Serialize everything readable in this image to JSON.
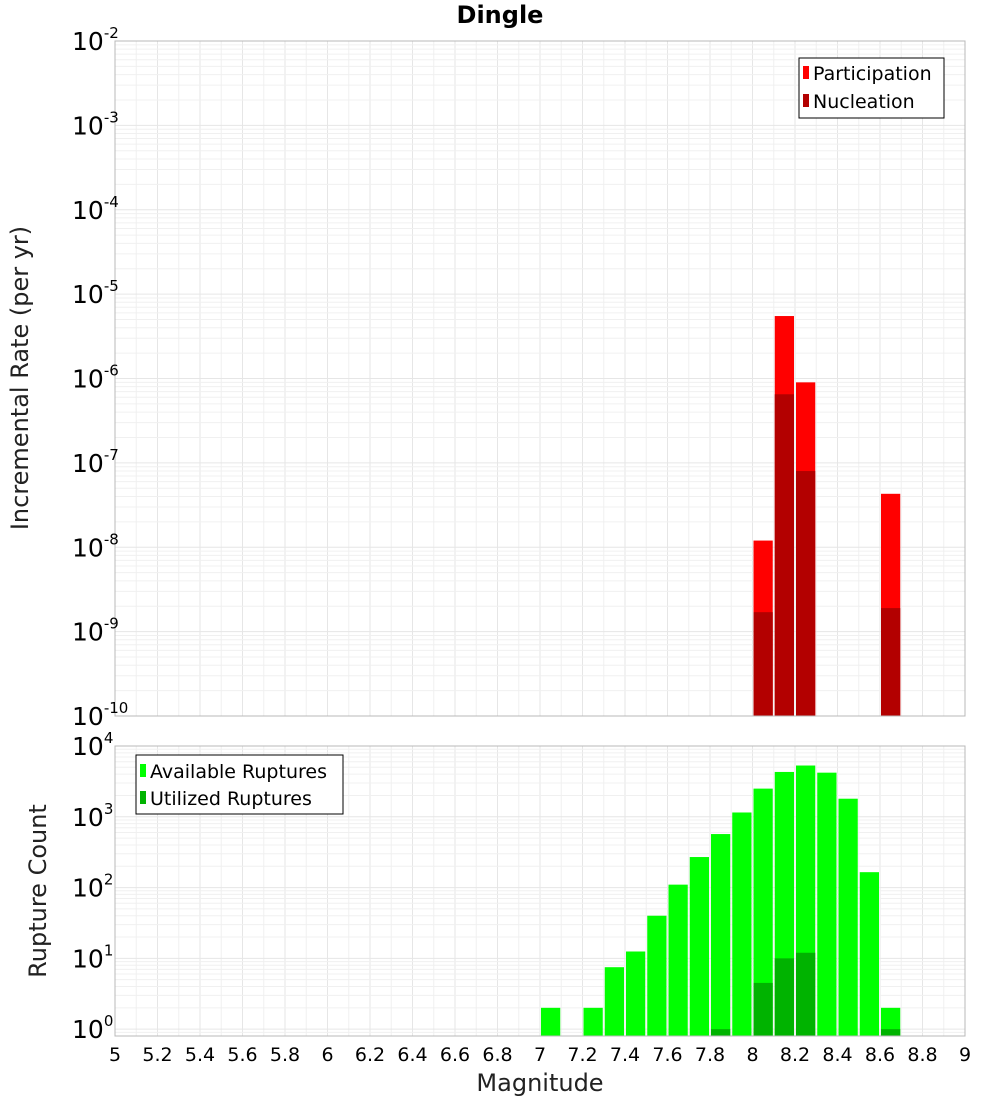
{
  "chart_data": [
    {
      "type": "bar",
      "title": "Dingle",
      "xlabel": "",
      "ylabel": "Incremental Rate (per yr)",
      "yscale": "log",
      "ylim": [
        1e-10,
        0.01
      ],
      "xlim": [
        5,
        9
      ],
      "y_ticks": [
        {
          "base": "10",
          "exp": "-10"
        },
        {
          "base": "10",
          "exp": "-9"
        },
        {
          "base": "10",
          "exp": "-8"
        },
        {
          "base": "10",
          "exp": "-7"
        },
        {
          "base": "10",
          "exp": "-6"
        },
        {
          "base": "10",
          "exp": "-5"
        },
        {
          "base": "10",
          "exp": "-4"
        },
        {
          "base": "10",
          "exp": "-3"
        },
        {
          "base": "10",
          "exp": "-2"
        }
      ],
      "bin_width": 0.1,
      "legend_position": "top-right",
      "series": [
        {
          "name": "Participation",
          "color": "#ff0000",
          "x": [
            8.05,
            8.15,
            8.25,
            8.65
          ],
          "values": [
            1.2e-08,
            5.5e-06,
            9e-07,
            4.3e-08
          ]
        },
        {
          "name": "Nucleation",
          "color": "#b30000",
          "x": [
            8.05,
            8.15,
            8.25,
            8.65
          ],
          "values": [
            1.7e-09,
            6.5e-07,
            8e-08,
            1.9e-09
          ]
        }
      ]
    },
    {
      "type": "bar",
      "title": "",
      "xlabel": "Magnitude",
      "ylabel": "Rupture Count",
      "yscale": "log",
      "ylim": [
        0.8,
        10000
      ],
      "xlim": [
        5,
        9
      ],
      "x_ticks": [
        "5",
        "5.2",
        "5.4",
        "5.6",
        "5.8",
        "6",
        "6.2",
        "6.4",
        "6.6",
        "6.8",
        "7",
        "7.2",
        "7.4",
        "7.6",
        "7.8",
        "8",
        "8.2",
        "8.4",
        "8.6",
        "8.8",
        "9"
      ],
      "y_ticks": [
        {
          "base": "10",
          "exp": "0"
        },
        {
          "base": "10",
          "exp": "1"
        },
        {
          "base": "10",
          "exp": "2"
        },
        {
          "base": "10",
          "exp": "3"
        },
        {
          "base": "10",
          "exp": "4"
        }
      ],
      "bin_width": 0.1,
      "legend_position": "top-left",
      "series": [
        {
          "name": "Available Ruptures",
          "color": "#00ff00",
          "x": [
            7.05,
            7.25,
            7.35,
            7.45,
            7.55,
            7.65,
            7.75,
            7.85,
            7.95,
            8.05,
            8.15,
            8.25,
            8.35,
            8.45,
            8.55,
            8.65
          ],
          "values": [
            2,
            2,
            7.5,
            12.5,
            40,
            110,
            270,
            570,
            1150,
            2500,
            4300,
            5300,
            4200,
            1800,
            165,
            2
          ]
        },
        {
          "name": "Utilized Ruptures",
          "color": "#00b300",
          "x": [
            7.85,
            8.05,
            8.15,
            8.25,
            8.65
          ],
          "values": [
            1,
            4.5,
            10,
            12,
            1
          ]
        }
      ]
    }
  ]
}
